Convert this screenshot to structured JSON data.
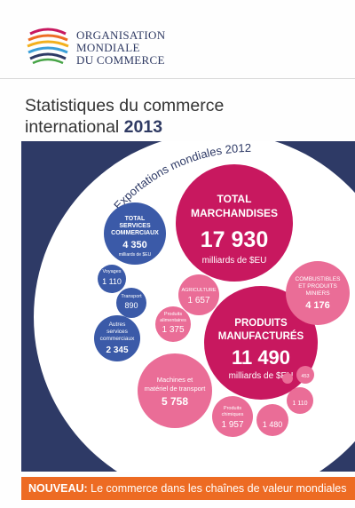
{
  "organization": {
    "line1": "Organisation",
    "line2": "Mondiale",
    "line3": "du Commerce"
  },
  "title": {
    "line1": "Statistiques du commerce",
    "line2_text": "international",
    "year": "2013"
  },
  "arc_label": "Exportations mondiales 2012",
  "bubbles": {
    "total_merch": {
      "label1": "TOTAL",
      "label2": "MARCHANDISES",
      "value": "17 930",
      "unit": "milliards de $EU"
    },
    "manufactured": {
      "label1": "PRODUITS",
      "label2": "MANUFACTURÉS",
      "value": "11 490",
      "unit": "milliards de $EU"
    },
    "fuels": {
      "label1": "COMBUSTIBLES",
      "label2": "ET PRODUITS",
      "label3": "MINIERS",
      "value": "4 176"
    },
    "agriculture": {
      "label": "AGRICULTURE",
      "value": "1 657"
    },
    "food": {
      "label1": "Produits",
      "label2": "alimentaires",
      "value": "1 375"
    },
    "machinery": {
      "label1": "Machines et",
      "label2": "matériel de transport",
      "value": "5 758"
    },
    "chemicals": {
      "label1": "Produits",
      "label2": "chimiques",
      "value": "1 957"
    },
    "other_manuf": {
      "value": "1 480"
    },
    "small1": {
      "value": "1 110"
    },
    "small2": {
      "value": "453"
    },
    "total_services": {
      "label1": "TOTAL",
      "label2": "SERVICES",
      "label3": "COMMERCIAUX",
      "value": "4 350",
      "unit": "milliards de $EU"
    },
    "travel": {
      "label": "Voyages",
      "value": "1 110"
    },
    "transport": {
      "label": "Transport",
      "value": "890"
    },
    "other_services": {
      "label1": "Autres",
      "label2": "services",
      "label3": "commerciaux",
      "value": "2 345"
    }
  },
  "banner": {
    "prefix": "NOUVEAU:",
    "text": " Le commerce dans les chaînes de valeur mondiales"
  },
  "colors": {
    "navy": "#2e3a66",
    "magenta": "#c8185f",
    "pink": "#ea6d97",
    "blue": "#3b5aa8",
    "orange": "#ed6b23"
  }
}
